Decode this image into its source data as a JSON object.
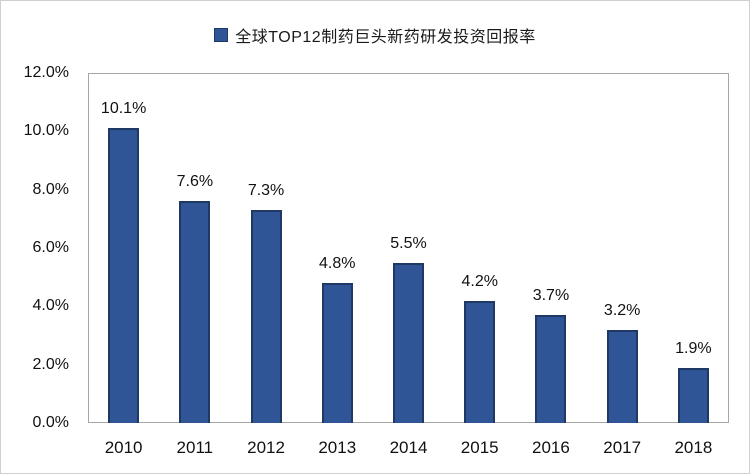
{
  "chart_data": {
    "type": "bar",
    "title": "全球TOP12制药巨头新药研发投资回报率",
    "legend": {
      "label": "全球TOP12制药巨头新药研发投资回报率",
      "marker_color": "#2F5597",
      "marker_border_color": "#1F3864",
      "position": "top"
    },
    "categories": [
      "2010",
      "2011",
      "2012",
      "2013",
      "2014",
      "2015",
      "2016",
      "2017",
      "2018"
    ],
    "values": [
      10.1,
      7.6,
      7.3,
      4.8,
      5.5,
      4.2,
      3.7,
      3.2,
      1.9
    ],
    "data_labels": [
      "10.1%",
      "7.6%",
      "7.3%",
      "4.8%",
      "5.5%",
      "4.2%",
      "3.7%",
      "3.2%",
      "1.9%"
    ],
    "xlabel": "",
    "ylabel": "",
    "ylim": [
      0,
      12
    ],
    "ytick_interval": 2,
    "yticks": [
      "0.0%",
      "2.0%",
      "4.0%",
      "6.0%",
      "8.0%",
      "10.0%",
      "12.0%"
    ],
    "grid": false,
    "bar_color": "#2F5597",
    "bar_border_color": "#1F3864",
    "axis_line_color": "#a6a6a6",
    "text_color": "#111111"
  }
}
